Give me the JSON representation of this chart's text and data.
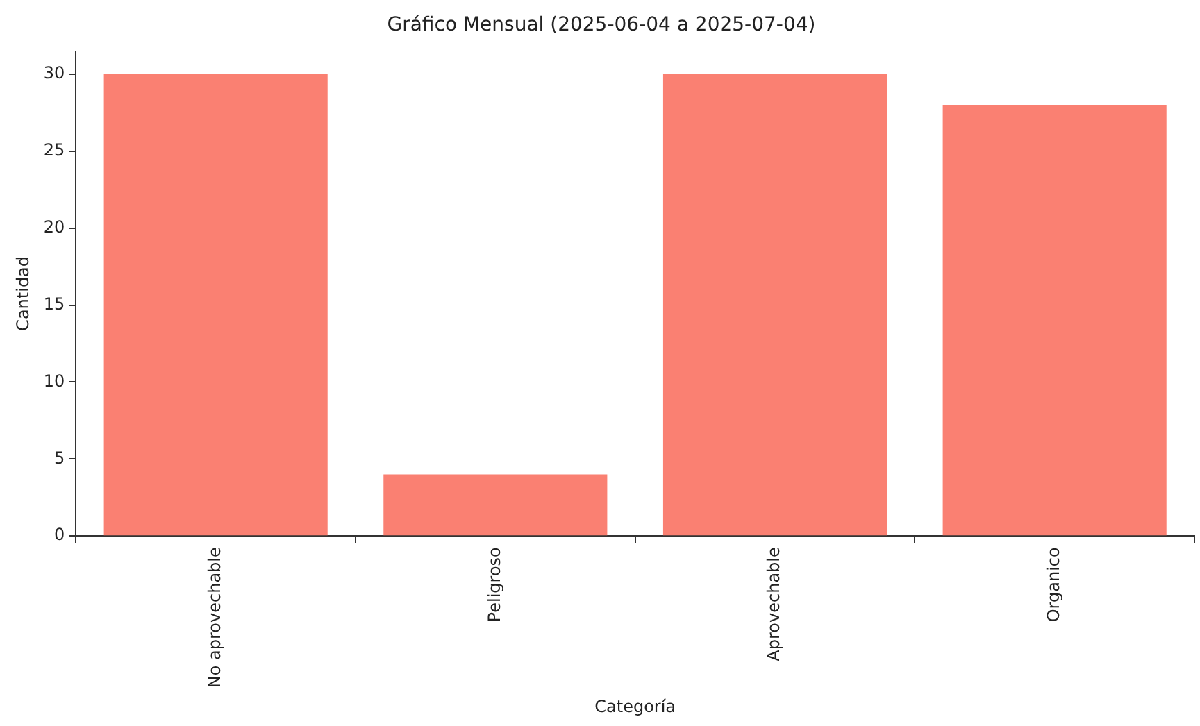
{
  "chart_data": {
    "type": "bar",
    "title": "Gráfico Mensual (2025-06-04 a 2025-07-04)",
    "xlabel": "Categoría",
    "ylabel": "Cantidad",
    "categories": [
      "No aprovechable",
      "Peligroso",
      "Aprovechable",
      "Organico"
    ],
    "values": [
      30,
      4,
      30,
      28
    ],
    "color": "#fa8072",
    "ylim": [
      0,
      31.5
    ],
    "yticks": [
      0,
      5,
      10,
      15,
      20,
      25,
      30
    ],
    "grid": false,
    "legend": false
  }
}
